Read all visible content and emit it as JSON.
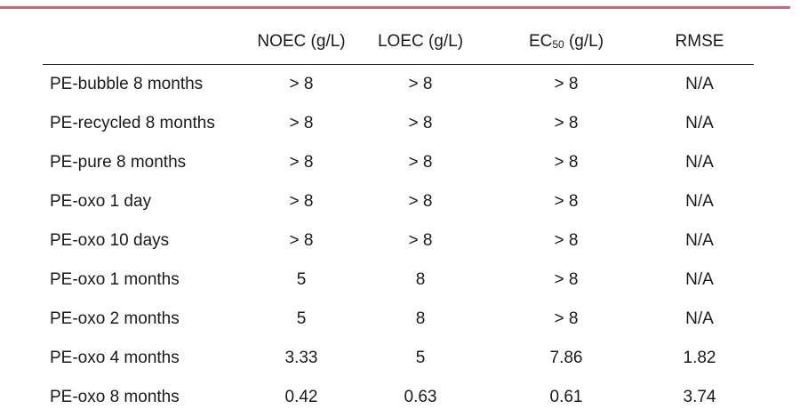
{
  "table": {
    "headers": {
      "noec": "NOEC (g/L)",
      "loec": "LOEC (g/L)",
      "ec50_prefix": "EC",
      "ec50_sub": "50",
      "ec50_suffix": " (g/L)",
      "rmse": "RMSE"
    },
    "rows": [
      {
        "name": "PE-bubble 8 months",
        "noec": "> 8",
        "loec": "> 8",
        "ec50": "> 8",
        "rmse": "N/A"
      },
      {
        "name": "PE-recycled 8 months",
        "noec": "> 8",
        "loec": "> 8",
        "ec50": "> 8",
        "rmse": "N/A"
      },
      {
        "name": "PE-pure 8 months",
        "noec": "> 8",
        "loec": "> 8",
        "ec50": "> 8",
        "rmse": "N/A"
      },
      {
        "name": "PE-oxo 1 day",
        "noec": "> 8",
        "loec": "> 8",
        "ec50": "> 8",
        "rmse": "N/A"
      },
      {
        "name": "PE-oxo 10 days",
        "noec": "> 8",
        "loec": "> 8",
        "ec50": "> 8",
        "rmse": "N/A"
      },
      {
        "name": "PE-oxo 1 months",
        "noec": "5",
        "loec": "8",
        "ec50": "> 8",
        "rmse": "N/A"
      },
      {
        "name": "PE-oxo 2 months",
        "noec": "5",
        "loec": "8",
        "ec50": "> 8",
        "rmse": "N/A"
      },
      {
        "name": "PE-oxo 4 months",
        "noec": "3.33",
        "loec": "5",
        "ec50": "7.86",
        "rmse": "1.82"
      },
      {
        "name": "PE-oxo 8 months",
        "noec": "0.42",
        "loec": "0.63",
        "ec50": "0.61",
        "rmse": "3.74"
      }
    ]
  }
}
